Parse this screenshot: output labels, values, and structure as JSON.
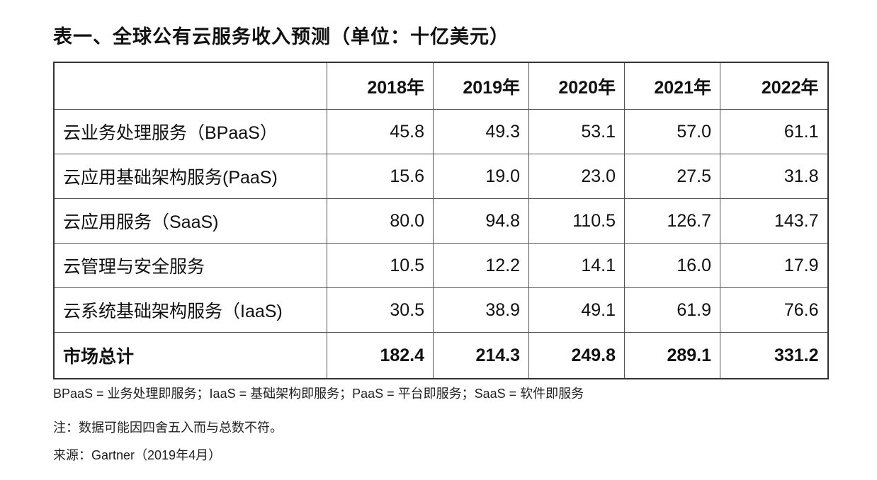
{
  "title": "表一、全球公有云服务收入预测（单位：十亿美元）",
  "table": {
    "headers": [
      "",
      "2018年",
      "2019年",
      "2020年",
      "2021年",
      "2022年"
    ],
    "rows": [
      {
        "label": "云业务处理服务（BPaaS）",
        "values": [
          "45.8",
          "49.3",
          "53.1",
          "57.0",
          "61.1"
        ]
      },
      {
        "label": "云应用基础架构服务(PaaS)",
        "values": [
          "15.6",
          "19.0",
          "23.0",
          "27.5",
          "31.8"
        ]
      },
      {
        "label": "云应用服务（SaaS)",
        "values": [
          "80.0",
          "94.8",
          "110.5",
          "126.7",
          "143.7"
        ]
      },
      {
        "label": "云管理与安全服务",
        "values": [
          "10.5",
          "12.2",
          "14.1",
          "16.0",
          "17.9"
        ]
      },
      {
        "label": "云系统基础架构服务（IaaS)",
        "values": [
          "30.5",
          "38.9",
          "49.1",
          "61.9",
          "76.6"
        ]
      }
    ],
    "total": {
      "label": "市场总计",
      "values": [
        "182.4",
        "214.3",
        "249.8",
        "289.1",
        "331.2"
      ]
    }
  },
  "notes": {
    "abbreviations": "BPaaS = 业务处理即服务；IaaS = 基础架构即服务；PaaS = 平台即服务；SaaS = 软件即服务",
    "rounding": "注：数据可能因四舍五入而与总数不符。",
    "source": "来源：Gartner（2019年4月）"
  }
}
